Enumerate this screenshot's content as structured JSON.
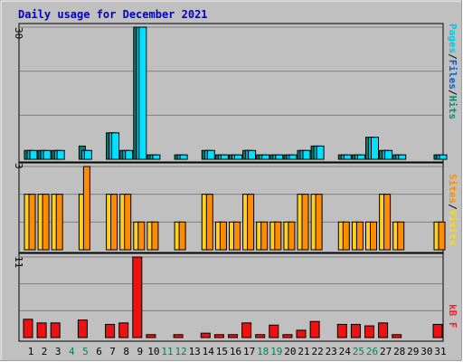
{
  "chart_data": [
    {
      "type": "bar",
      "title": "Daily usage for December 2021",
      "categories": [
        "1",
        "2",
        "3",
        "4",
        "5",
        "6",
        "7",
        "8",
        "9",
        "10",
        "11",
        "12",
        "13",
        "14",
        "15",
        "16",
        "17",
        "18",
        "19",
        "20",
        "21",
        "22",
        "23",
        "24",
        "25",
        "26",
        "27",
        "28",
        "29",
        "30",
        "31"
      ],
      "weekend_days": [
        "4",
        "5",
        "11",
        "12",
        "18",
        "19",
        "25",
        "26"
      ],
      "ylim": [
        0,
        30
      ],
      "y_tick_label": "30",
      "legend": [
        {
          "text": "Pages",
          "color": "#00c8e8"
        },
        {
          "text": "/",
          "color": "#000000"
        },
        {
          "text": "Files",
          "color": "#0060d8"
        },
        {
          "text": "/",
          "color": "#000000"
        },
        {
          "text": "Hits",
          "color": "#009070"
        }
      ],
      "series": [
        {
          "name": "Hits",
          "color": "#00806e",
          "values": [
            2,
            2,
            2,
            0,
            3,
            0,
            6,
            2,
            30,
            1,
            0,
            1,
            0,
            2,
            1,
            1,
            2,
            1,
            1,
            1,
            2,
            3,
            0,
            1,
            1,
            5,
            2,
            1,
            0,
            0,
            1
          ]
        },
        {
          "name": "Files",
          "color": "#00b4d8",
          "values": [
            2,
            2,
            2,
            0,
            2,
            0,
            6,
            2,
            30,
            1,
            0,
            1,
            0,
            2,
            1,
            1,
            2,
            1,
            1,
            1,
            2,
            3,
            0,
            1,
            1,
            5,
            2,
            1,
            0,
            0,
            1
          ]
        },
        {
          "name": "Pages",
          "color": "#00e0ff",
          "values": [
            2,
            2,
            2,
            0,
            2,
            0,
            6,
            2,
            30,
            1,
            0,
            1,
            0,
            2,
            1,
            1,
            2,
            1,
            1,
            1,
            2,
            3,
            0,
            1,
            1,
            5,
            2,
            1,
            0,
            0,
            1
          ]
        }
      ]
    },
    {
      "type": "bar",
      "ylim": [
        0,
        3
      ],
      "y_tick_label": "3",
      "legend": [
        {
          "text": "Sites",
          "color": "#ff8c00"
        },
        {
          "text": "/",
          "color": "#000000"
        },
        {
          "text": "Visits",
          "color": "#ffdc00"
        }
      ],
      "series": [
        {
          "name": "Visits",
          "color": "#ffd020",
          "values": [
            2,
            2,
            2,
            0,
            2,
            0,
            2,
            2,
            1,
            1,
            0,
            1,
            0,
            2,
            1,
            1,
            2,
            1,
            1,
            1,
            2,
            2,
            0,
            1,
            1,
            1,
            2,
            1,
            0,
            0,
            1
          ]
        },
        {
          "name": "Sites",
          "color": "#ff8c00",
          "values": [
            2,
            2,
            2,
            0,
            3,
            0,
            2,
            2,
            1,
            1,
            0,
            1,
            0,
            2,
            1,
            1,
            2,
            1,
            1,
            1,
            2,
            2,
            0,
            1,
            1,
            1,
            2,
            1,
            0,
            0,
            1
          ]
        }
      ]
    },
    {
      "type": "bar",
      "ylim": [
        0,
        11
      ],
      "y_tick_label": "11",
      "legend": [
        {
          "text": "kB F",
          "color": "#ff2020"
        }
      ],
      "series": [
        {
          "name": "kB F",
          "color": "#ee1111",
          "values": [
            2.5,
            2,
            2,
            0,
            2.4,
            0,
            1.8,
            2,
            11,
            0.4,
            0,
            0.4,
            0,
            0.6,
            0.4,
            0.4,
            2,
            0.4,
            1.7,
            0.4,
            1,
            2.2,
            0,
            1.8,
            1.8,
            1.6,
            2,
            0.4,
            0,
            0,
            1.8
          ]
        }
      ]
    }
  ]
}
